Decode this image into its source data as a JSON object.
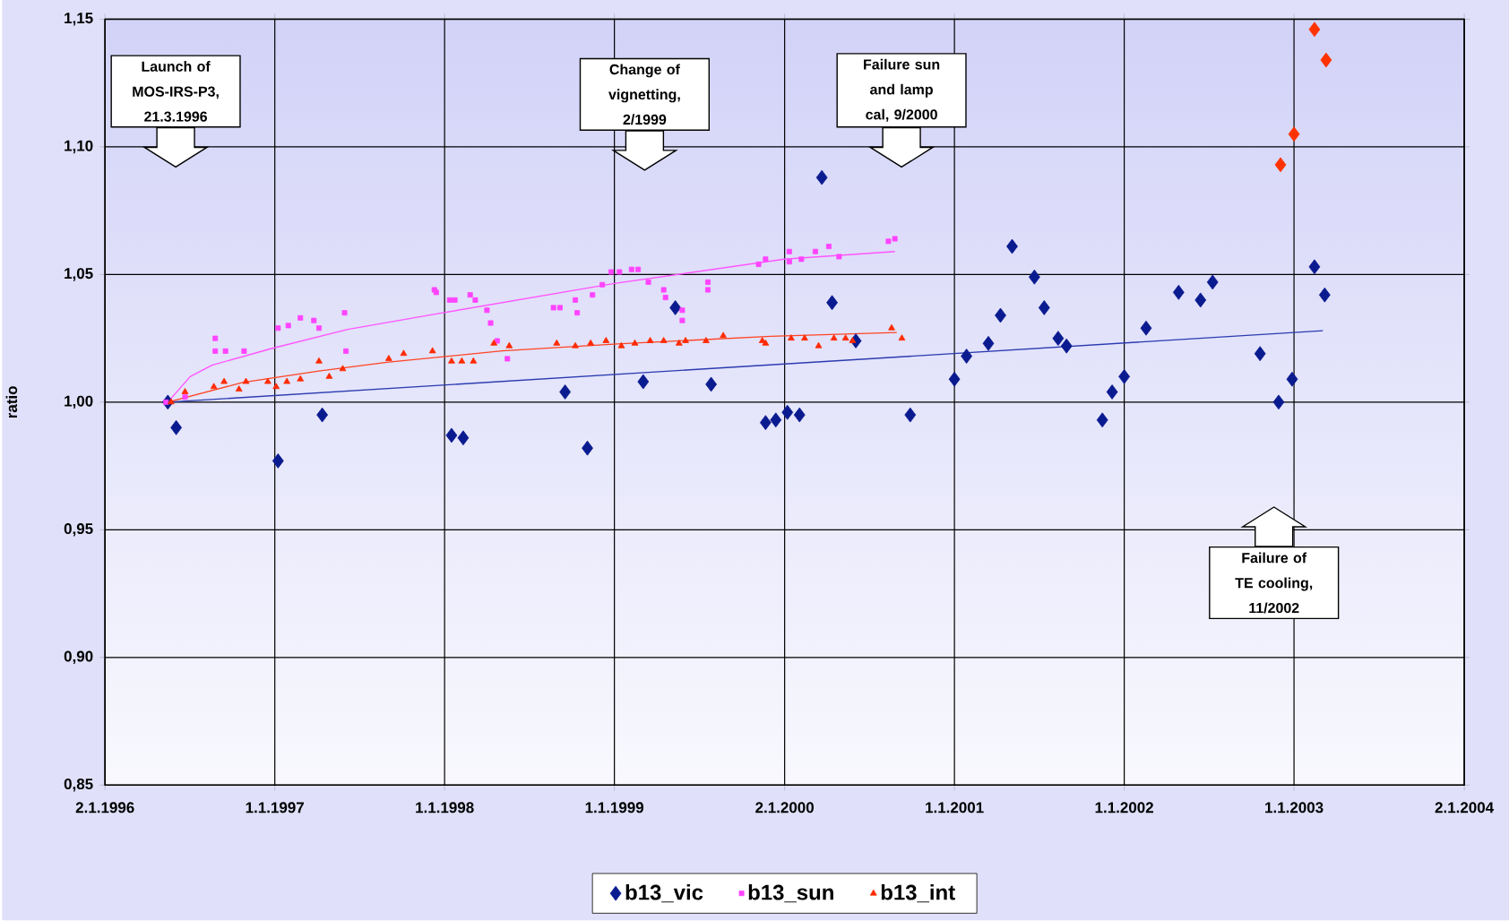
{
  "chart_data": {
    "type": "scatter",
    "ylabel": "ratio",
    "xlim": [
      "1996-01-02",
      "2004-01-02"
    ],
    "ylim": [
      0.85,
      1.15
    ],
    "xticks": [
      {
        "value": "1996-01-02",
        "label": "2.1.1996"
      },
      {
        "value": "1997-01-01",
        "label": "1.1.1997"
      },
      {
        "value": "1998-01-01",
        "label": "1.1.1998"
      },
      {
        "value": "1999-01-01",
        "label": "1.1.1999"
      },
      {
        "value": "2000-01-02",
        "label": "2.1.2000"
      },
      {
        "value": "2001-01-01",
        "label": "1.1.2001"
      },
      {
        "value": "2002-01-01",
        "label": "1.1.2002"
      },
      {
        "value": "2003-01-01",
        "label": "1.1.2003"
      },
      {
        "value": "2004-01-02",
        "label": "2.1.2004"
      }
    ],
    "yticks": [
      {
        "value": 0.85,
        "label": "0,85"
      },
      {
        "value": 0.9,
        "label": "0,90"
      },
      {
        "value": 0.95,
        "label": "0,95"
      },
      {
        "value": 1.0,
        "label": "1,00"
      },
      {
        "value": 1.05,
        "label": "1,05"
      },
      {
        "value": 1.1,
        "label": "1,10"
      },
      {
        "value": 1.15,
        "label": "1,15"
      }
    ],
    "grid": true,
    "legend": "bottom",
    "series": [
      {
        "name": "b13_vic",
        "marker": "diamond",
        "color": "#0a1a8f",
        "x": [
          "1996-05-16",
          "1996-06-03",
          "1997-01-08",
          "1997-04-13",
          "1998-01-16",
          "1998-02-10",
          "1998-09-17",
          "1998-11-04",
          "1999-03-04",
          "1999-05-12",
          "1999-07-28",
          "1999-11-22",
          "1999-12-14",
          "2000-01-08",
          "2000-02-03",
          "2000-03-22",
          "2000-04-13",
          "2000-06-03",
          "2000-09-28",
          "2001-01-01",
          "2001-01-27",
          "2001-03-15",
          "2001-04-10",
          "2001-05-05",
          "2001-06-22",
          "2001-07-13",
          "2001-08-12",
          "2001-08-30",
          "2001-11-15",
          "2001-12-06",
          "2002-01-01",
          "2002-02-17",
          "2002-04-28",
          "2002-06-14",
          "2002-07-10",
          "2002-10-20",
          "2002-11-29",
          "2002-12-28",
          "2003-02-14",
          "2003-03-08"
        ],
        "values": [
          1.0,
          0.99,
          0.977,
          0.995,
          0.987,
          0.986,
          1.004,
          0.982,
          1.008,
          1.037,
          1.007,
          0.992,
          0.993,
          0.996,
          0.995,
          1.088,
          1.039,
          1.024,
          0.995,
          1.009,
          1.018,
          1.023,
          1.034,
          1.061,
          1.049,
          1.037,
          1.025,
          1.022,
          0.993,
          1.004,
          1.01,
          1.029,
          1.043,
          1.04,
          1.047,
          1.019,
          1.0,
          1.009,
          1.053,
          1.042
        ]
      },
      {
        "marker": "diamond",
        "color": "#ff3300",
        "x": [
          "2002-12-03",
          "2003-01-01",
          "2003-02-14",
          "2003-03-11"
        ],
        "values": [
          1.093,
          1.105,
          1.146,
          1.134
        ]
      },
      {
        "name": "b13_sun",
        "marker": "square",
        "color": "#ff44ff",
        "x": [
          "1996-05-12",
          "1996-06-22",
          "1996-08-26",
          "1996-08-26",
          "1996-09-17",
          "1996-10-27",
          "1997-01-08",
          "1997-01-30",
          "1997-02-25",
          "1997-03-26",
          "1997-04-06",
          "1997-05-31",
          "1997-06-03",
          "1997-12-10",
          "1997-12-14",
          "1998-01-12",
          "1998-01-23",
          "1998-02-25",
          "1998-03-08",
          "1998-04-02",
          "1998-04-10",
          "1998-04-24",
          "1998-05-16",
          "1998-08-23",
          "1998-09-06",
          "1998-10-09",
          "1998-10-13",
          "1998-11-15",
          "1998-12-06",
          "1998-12-25",
          "1999-01-12",
          "1999-02-07",
          "1999-02-21",
          "1999-03-15",
          "1999-04-17",
          "1999-04-21",
          "1999-05-27",
          "1999-05-27",
          "1999-07-21",
          "1999-07-21",
          "1999-11-07",
          "1999-11-22",
          "2000-01-12",
          "2000-01-12",
          "2000-02-07",
          "2000-03-08",
          "2000-04-06",
          "2000-04-28",
          "2000-08-12",
          "2000-08-26"
        ],
        "values": [
          1.0,
          1.002,
          1.025,
          1.02,
          1.02,
          1.02,
          1.029,
          1.03,
          1.033,
          1.032,
          1.029,
          1.035,
          1.02,
          1.044,
          1.043,
          1.04,
          1.04,
          1.042,
          1.04,
          1.036,
          1.031,
          1.024,
          1.017,
          1.037,
          1.037,
          1.04,
          1.035,
          1.042,
          1.046,
          1.051,
          1.051,
          1.052,
          1.052,
          1.047,
          1.044,
          1.041,
          1.036,
          1.032,
          1.047,
          1.044,
          1.054,
          1.056,
          1.059,
          1.055,
          1.056,
          1.059,
          1.061,
          1.057,
          1.063,
          1.064
        ]
      },
      {
        "name": "b13_int",
        "marker": "triangle",
        "color": "#ff2a00",
        "x": [
          "1996-05-23",
          "1996-06-22",
          "1996-08-23",
          "1996-09-14",
          "1996-10-16",
          "1996-10-31",
          "1996-12-17",
          "1997-01-04",
          "1997-01-27",
          "1997-02-25",
          "1997-04-06",
          "1997-04-28",
          "1997-05-27",
          "1997-09-03",
          "1997-10-05",
          "1997-12-06",
          "1998-01-16",
          "1998-02-07",
          "1998-03-04",
          "1998-04-17",
          "1998-05-20",
          "1998-08-30",
          "1998-10-09",
          "1998-11-11",
          "1998-12-14",
          "1999-01-16",
          "1999-02-14",
          "1999-03-19",
          "1999-04-17",
          "1999-05-20",
          "1999-06-03",
          "1999-07-17",
          "1999-08-23",
          "1999-11-15",
          "1999-11-22",
          "2000-01-16",
          "2000-02-14",
          "2000-03-15",
          "2000-04-17",
          "2000-05-12",
          "2000-05-27",
          "2000-08-19",
          "2000-09-10"
        ],
        "values": [
          1.0,
          1.004,
          1.006,
          1.008,
          1.005,
          1.008,
          1.008,
          1.006,
          1.008,
          1.009,
          1.016,
          1.01,
          1.013,
          1.017,
          1.019,
          1.02,
          1.016,
          1.016,
          1.016,
          1.023,
          1.022,
          1.023,
          1.022,
          1.023,
          1.024,
          1.022,
          1.023,
          1.024,
          1.024,
          1.023,
          1.024,
          1.024,
          1.026,
          1.024,
          1.023,
          1.025,
          1.025,
          1.022,
          1.025,
          1.025,
          1.024,
          1.029,
          1.025
        ]
      },
      {
        "type": "line",
        "marker": "none",
        "line_style": "solid",
        "color": "#2b3bb0",
        "x": [
          "1996-05-16",
          "2003-03-04"
        ],
        "values": [
          1.0,
          1.028
        ]
      },
      {
        "type": "line",
        "marker": "none",
        "line_style": "solid",
        "color": "#ff55ff",
        "x": [
          "1996-05-16",
          "1996-07-03",
          "1996-08-19",
          "1996-12-25",
          "1997-06-07",
          "1997-12-28",
          "1999-01-01",
          "2000-01-01",
          "2000-08-26"
        ],
        "values": [
          1.0,
          1.01,
          1.0145,
          1.021,
          1.0285,
          1.035,
          1.0465,
          1.056,
          1.059
        ]
      },
      {
        "type": "line",
        "marker": "none",
        "line_style": "solid",
        "color": "#ff4422",
        "x": [
          "1996-05-16",
          "1996-10-24",
          "1997-04-06",
          "1997-08-30",
          "1998-05-05",
          "1999-01-08",
          "1999-12-03",
          "2000-08-30"
        ],
        "values": [
          1.0,
          1.0077,
          1.0122,
          1.0156,
          1.0201,
          1.0228,
          1.0258,
          1.0273
        ]
      }
    ],
    "annotations": [
      "Launch of MOS-IRS-P3, 21.3.1996",
      "Change of vignetting, 2/1999",
      "Failure sun and lamp cal, 9/2000",
      "Failure of TE cooling, 11/2002"
    ]
  }
}
